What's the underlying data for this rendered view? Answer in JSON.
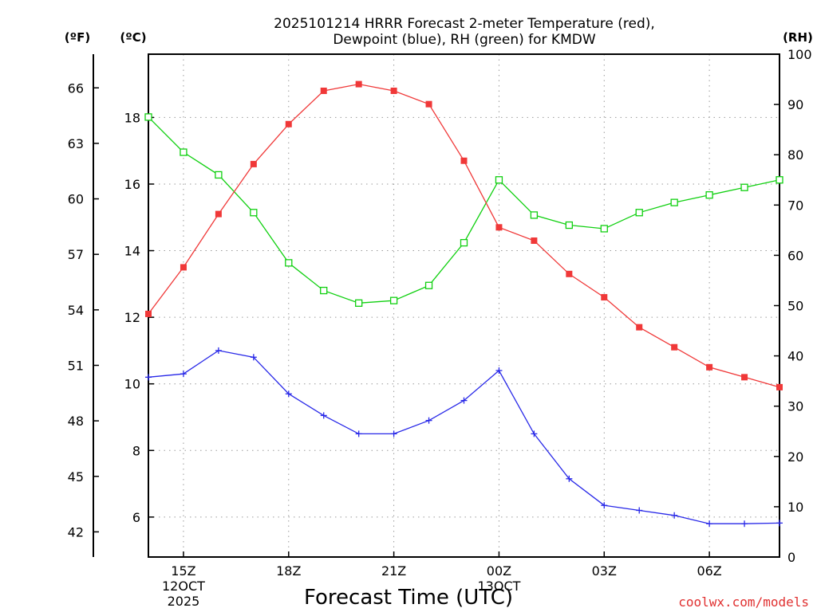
{
  "title_line1": "2025101214 HRRR Forecast 2-meter Temperature (red),",
  "title_line2": "Dewpoint (blue), RH (green) for KMDW",
  "axis_units": {
    "fahrenheit": "(ºF)",
    "celsius": "(ºC)",
    "rh": "(RH)"
  },
  "xlabel": "Forecast Time (UTC)",
  "credit": "coolwx.com/models",
  "colors": {
    "temperature": "#f03838",
    "dewpoint": "#2828e8",
    "rh": "#10d010"
  },
  "chart_data": {
    "type": "line",
    "x_hours": [
      14,
      15,
      16,
      17,
      18,
      19,
      20,
      21,
      22,
      23,
      24,
      25,
      26,
      27,
      28,
      29,
      30,
      31,
      32
    ],
    "xlim": [
      14,
      32
    ],
    "x_ticks": [
      {
        "hour": 15,
        "label": "15Z",
        "sub1": "12OCT",
        "sub2": "2025"
      },
      {
        "hour": 18,
        "label": "18Z",
        "sub1": "",
        "sub2": ""
      },
      {
        "hour": 21,
        "label": "21Z",
        "sub1": "",
        "sub2": ""
      },
      {
        "hour": 24,
        "label": "00Z",
        "sub1": "13OCT",
        "sub2": ""
      },
      {
        "hour": 27,
        "label": "03Z",
        "sub1": "",
        "sub2": ""
      },
      {
        "hour": 30,
        "label": "06Z",
        "sub1": "",
        "sub2": ""
      }
    ],
    "celsius_axis": {
      "range": [
        4.8,
        19.9
      ],
      "ticks": [
        "6",
        "8",
        "10",
        "12",
        "14",
        "16",
        "18"
      ]
    },
    "fahrenheit_ticks": [
      "42",
      "45",
      "48",
      "51",
      "54",
      "57",
      "60",
      "63",
      "66"
    ],
    "rh_axis": {
      "range": [
        0,
        100
      ],
      "ticks": [
        "0",
        "10",
        "20",
        "30",
        "40",
        "50",
        "60",
        "70",
        "80",
        "90",
        "100"
      ]
    },
    "series": [
      {
        "name": "Temperature",
        "axis": "celsius",
        "marker": "filled-square",
        "values": [
          12.1,
          13.5,
          15.1,
          16.6,
          17.8,
          18.8,
          19.0,
          18.8,
          18.4,
          16.7,
          14.7,
          14.3,
          13.3,
          12.6,
          11.7,
          11.1,
          10.5,
          10.2,
          9.9
        ]
      },
      {
        "name": "Dewpoint",
        "axis": "celsius",
        "marker": "plus",
        "values": [
          10.2,
          10.3,
          11.0,
          10.8,
          9.7,
          9.05,
          8.5,
          8.5,
          8.9,
          9.5,
          10.4,
          8.5,
          7.15,
          6.35,
          6.2,
          6.05,
          5.8,
          5.8,
          5.82
        ]
      },
      {
        "name": "RH",
        "axis": "rh",
        "marker": "open-square",
        "values": [
          87.5,
          80.5,
          76.0,
          68.5,
          58.5,
          53.0,
          50.5,
          51.0,
          54.0,
          62.5,
          75.0,
          68.0,
          66.0,
          65.3,
          68.5,
          70.5,
          72.0,
          73.5,
          75.0
        ]
      }
    ]
  }
}
